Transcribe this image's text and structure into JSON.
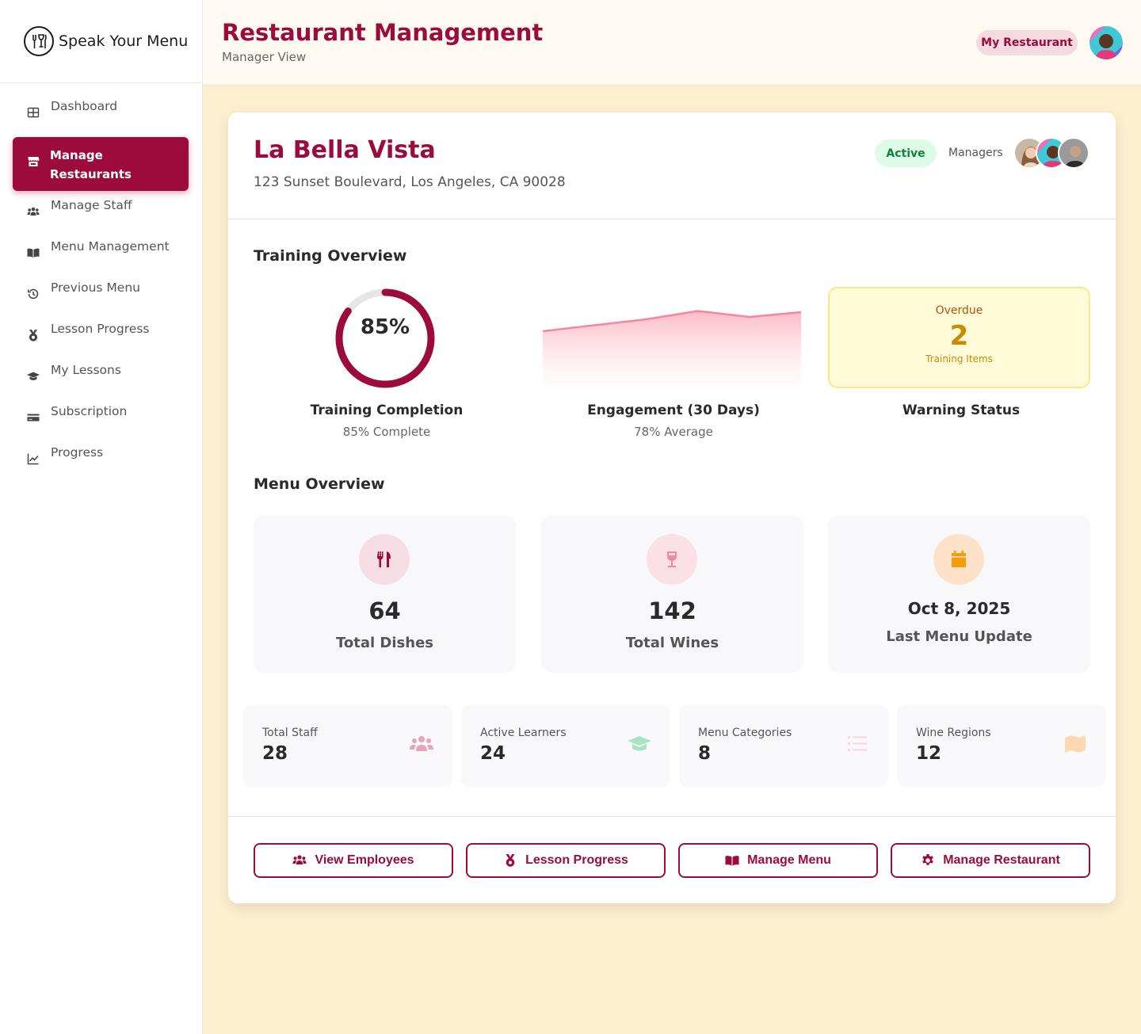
{
  "app": {
    "name": "Speak Your Menu"
  },
  "sidebar": {
    "items": [
      {
        "label": "Dashboard",
        "icon": "grid-icon",
        "active": false
      },
      {
        "label": "Manage Restaurants",
        "icon": "store-icon",
        "active": true
      },
      {
        "label": "Manage Staff",
        "icon": "users-icon",
        "active": false
      },
      {
        "label": "Menu Management",
        "icon": "book-icon",
        "active": false
      },
      {
        "label": "Previous Menu",
        "icon": "history-icon",
        "active": false
      },
      {
        "label": "Lesson Progress",
        "icon": "medal-icon",
        "active": false
      },
      {
        "label": "My Lessons",
        "icon": "graduation-cap-icon",
        "active": false
      },
      {
        "label": "Subscription",
        "icon": "credit-card-icon",
        "active": false
      },
      {
        "label": "Progress",
        "icon": "line-chart-icon",
        "active": false
      }
    ]
  },
  "header": {
    "title": "Restaurant Management",
    "subtitle": "Manager View",
    "restaurant_pill": "My Restaurant"
  },
  "restaurant": {
    "name": "La Bella Vista",
    "address": "123 Sunset Boulevard, Los Angeles, CA 90028",
    "status": "Active",
    "managers_label": "Managers"
  },
  "training": {
    "section_title": "Training Overview",
    "completion": {
      "value_text": "85%",
      "value": 0.85,
      "title": "Training Completion",
      "subtitle": "85% Complete"
    },
    "engagement": {
      "title": "Engagement (30 Days)",
      "subtitle": "78% Average",
      "trend": [
        62,
        67,
        72,
        79,
        74,
        78
      ]
    },
    "warning": {
      "top": "Overdue",
      "number": "2",
      "bottom": "Training Items",
      "title": "Warning Status"
    }
  },
  "menu_overview": {
    "section_title": "Menu Overview",
    "cards": [
      {
        "value": "64",
        "label": "Total Dishes",
        "icon": "utensils-icon"
      },
      {
        "value": "142",
        "label": "Total Wines",
        "icon": "wine-glass-icon"
      },
      {
        "value": "Oct 8, 2025",
        "label": "Last Menu Update",
        "icon": "calendar-icon"
      }
    ]
  },
  "stats": [
    {
      "label": "Total Staff",
      "value": "28",
      "icon": "users-icon"
    },
    {
      "label": "Active Learners",
      "value": "24",
      "icon": "graduation-cap-icon"
    },
    {
      "label": "Menu Categories",
      "value": "8",
      "icon": "list-icon"
    },
    {
      "label": "Wine Regions",
      "value": "12",
      "icon": "map-icon"
    }
  ],
  "actions": [
    {
      "label": "View Employees",
      "icon": "users-icon"
    },
    {
      "label": "Lesson Progress",
      "icon": "medal-icon"
    },
    {
      "label": "Manage Menu",
      "icon": "book-icon"
    },
    {
      "label": "Manage Restaurant",
      "icon": "gear-icon"
    }
  ],
  "colors": {
    "brand": "#9c0b3b",
    "background": "#fdefcf",
    "active_green": "#15803d",
    "warning": "#ca8a04"
  }
}
